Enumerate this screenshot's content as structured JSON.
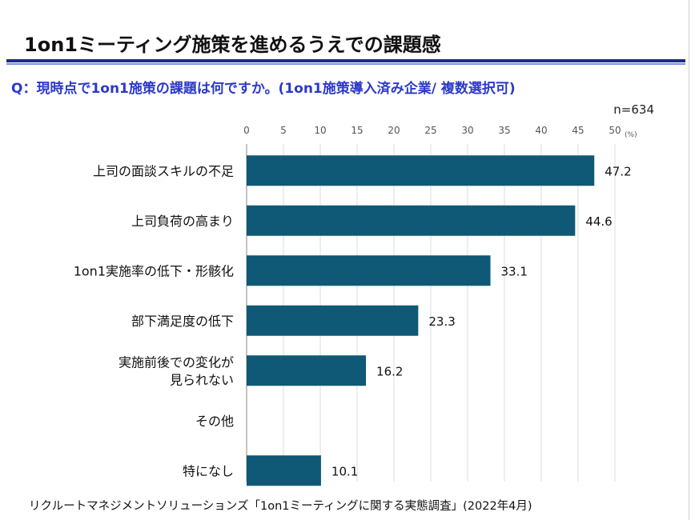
{
  "title": "1on1ミーティング施策を進めるうえでの課題感",
  "question": "Q：現時点で1on1施策の課題は何ですか。(1on1施策導入済み企業/ 複数選択可)",
  "sample_size": "n=634",
  "source": "リクルートマネジメントソリューションズ「1on1ミーティングに関する実態調査」(2022年4月)",
  "colors": {
    "bar": "#0f5876",
    "question": "#2b39c9",
    "rule": "#1c2a8a"
  },
  "chart_data": {
    "type": "bar",
    "orientation": "horizontal",
    "unit": "(%)",
    "xlim": [
      0,
      50
    ],
    "ticks": [
      0,
      5,
      10,
      15,
      20,
      25,
      30,
      35,
      40,
      45,
      50
    ],
    "grid": true,
    "categories": [
      [
        "上司の面談スキルの不足"
      ],
      [
        "上司負荷の高まり"
      ],
      [
        "1on1実施率の低下・形骸化"
      ],
      [
        "部下満足度の低下"
      ],
      [
        "実施前後での変化が",
        "見られない"
      ],
      [
        "その他"
      ],
      [
        "特になし"
      ]
    ],
    "values": [
      47.2,
      44.6,
      33.1,
      23.3,
      16.2,
      null,
      10.1
    ],
    "labels": [
      "47.2",
      "44.6",
      "33.1",
      "23.3",
      "16.2",
      "",
      "10.1"
    ]
  }
}
